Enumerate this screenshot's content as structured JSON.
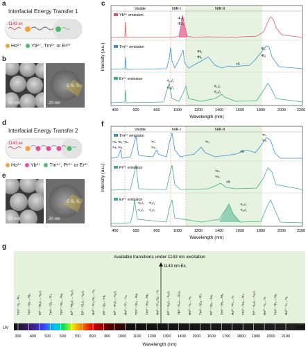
{
  "panels": {
    "a": {
      "label": "a",
      "title": "Interfacial Energy Transfer 1",
      "excitation": "1143 ex",
      "legend": [
        "Ho²⁺",
        "Yb²⁺, Tm²⁺ or Er³⁺"
      ]
    },
    "b": {
      "label": "b",
      "scale1": "50 nm",
      "scale2": "20 nm",
      "shells": "C S₁ S₂"
    },
    "c": {
      "label": "c",
      "xlabel": "Wavelength (nm)",
      "ylabel": "Intensity (a.u.)",
      "regions": [
        "Visible",
        "NIR-I",
        "NIR-II"
      ],
      "traces": [
        "Yb³⁺ emission",
        "Tm³⁺ emission",
        "Er³⁺ emission"
      ],
      "xticks": [
        "400",
        "600",
        "800",
        "1000",
        "1200",
        "1400",
        "1600",
        "1800",
        "2000",
        "2200"
      ],
      "colors": {
        "yb": "#e0556e",
        "tm": "#3a8fd8",
        "er": "#3fae87"
      },
      "annotations": {
        "yb": [
          "²F₅/₂",
          "²F₇/₂"
        ],
        "tm": [
          "³H₅",
          "³H₆",
          "³F₄",
          "³H₆",
          "×5"
        ],
        "er": [
          "⁴I₁₃/₂",
          "⁴I₁₅/₂",
          "⁴I₁₁/₂",
          "⁴I₁₃/₂"
        ]
      }
    },
    "d": {
      "label": "d",
      "title": "Interfacial Energy Transfer 2",
      "excitation": "1143 ex",
      "legend": [
        "Ho³⁺",
        "Yb³⁺",
        "Tm³⁺, Pr³⁺ or Er³⁺"
      ]
    },
    "e": {
      "label": "e",
      "scale1": "50 nm",
      "scale2": "20 nm",
      "shells": "C S₁ S₂"
    },
    "f": {
      "label": "f",
      "xlabel": "Wavelength (nm)",
      "ylabel": "Intensity (a.u.)",
      "regions": [
        "Visible",
        "NIR-I",
        "NIR-II"
      ],
      "traces": [
        "Tm³⁺ emission",
        "Pr³⁺ emission",
        "Er³⁺ emission"
      ],
      "xticks": [
        "400",
        "600",
        "800",
        "1000",
        "1200",
        "1400",
        "1600",
        "1800",
        "2000",
        "2200"
      ],
      "annotations": {
        "tm": [
          "¹G₄",
          "¹D₂",
          "¹G₄",
          "³F₄",
          "³H₄",
          "³H₆",
          "³H₄",
          "³F₄",
          "×5",
          "³F₄",
          "³H₆"
        ],
        "pr": [
          "¹G₄",
          "³H₄",
          "×5"
        ],
        "er": [
          "⁴S₃/₂",
          "⁴F₉/₂",
          "⁴I₁₅/₂",
          "⁴I₁₅/₂",
          "⁴I₁₃/₂",
          "⁴I₁₅/₂"
        ]
      }
    },
    "g": {
      "label": "g",
      "title": "Available transitions under 1143 nm excitation",
      "excitation": "1143 nm Ex.",
      "xlabel": "Wavelength (nm)",
      "uv": "UV",
      "nir": "NIR",
      "xticks": [
        "300",
        "400",
        "500",
        "600",
        "700",
        "800",
        "900",
        "1000",
        "1100",
        "1200",
        "1300",
        "1400",
        "1500",
        "1600",
        "1700",
        "1800",
        "1900",
        "2000",
        "2100"
      ],
      "transitions": [
        "Tm³⁺: ¹I₆→³F₄",
        "Tm³⁺: ¹D₂→³H₆",
        "Er³⁺: ²G₉/₂→⁴I₁₅/₂",
        "Tm³⁺: ¹D₂→³F₄",
        "Tm³⁺: ¹G₄→³H₆",
        "Er³⁺: ²H₁₁/₂→⁴I₁₅/₂",
        "Er³⁺: ⁴S₃/₂→⁴I₁₅/₂",
        "Ho³⁺: ⁵F₄,⁵S₂→⁵I₈",
        "Pr³⁺: ¹D₂→³H₄",
        "Er³⁺: ⁴F₉/₂→⁴I₁₅/₂",
        "Ho³⁺: ⁵F₅→⁵I₈",
        "Tm³⁺: ¹G₄→³H₅",
        "Tm³⁺: ³H₄→³H₆",
        "Ho³⁺: ⁵F₄,⁵S₂→⁵I₇",
        "Er³⁺: ⁴I₁₁/₂→⁴I₁₅/₂",
        "Yb³⁺: ²F₅/₂→²F₇/₂",
        "Ho³⁺: ⁵I₆→⁵I₈",
        "Tm³⁺: ¹G₄→³F₄",
        "Pr³⁺: ¹G₄→³H₄",
        "Tm³⁺: ³H₄→³H₅",
        "Ho³⁺: ⁵F₅→⁵I₇",
        "Tm³⁺: ³H₄→³F₄",
        "Er³⁺: ⁴I₁₃/₂→⁴I₁₅/₂",
        "Ho³⁺: ⁵I₆→⁵I₇",
        "Tm³⁺: ³F₄→³H₆",
        "Ho³⁺: ⁵I₇→⁵I₈"
      ]
    }
  }
}
